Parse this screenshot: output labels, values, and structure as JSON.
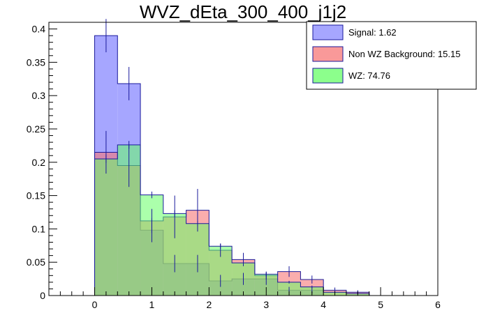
{
  "chart_data": {
    "type": "histogram",
    "title": "WVZ_dEta_300_400_j1j2",
    "xlabel": "",
    "ylabel": "",
    "xlim": [
      -0.8,
      6
    ],
    "ylim": [
      0,
      0.41
    ],
    "bin_edges": [
      0,
      0.4,
      0.8,
      1.2,
      1.6,
      2.0,
      2.4,
      2.8,
      3.2,
      3.6,
      4.0,
      4.4,
      4.8
    ],
    "x_ticks": [
      0,
      1,
      2,
      3,
      4,
      5,
      6
    ],
    "x_tick_labels": [
      "0",
      "1",
      "2",
      "3",
      "4",
      "5",
      "6"
    ],
    "y_ticks": [
      0,
      0.05,
      0.1,
      0.15,
      0.2,
      0.25,
      0.3,
      0.35,
      0.4
    ],
    "y_tick_labels": [
      "0",
      "0.05",
      "0.1",
      "0.15",
      "0.2",
      "0.25",
      "0.3",
      "0.35",
      "0.4"
    ],
    "series": [
      {
        "name": "Signal",
        "legend": "Signal: 1.62",
        "fill": "#a6a6ff",
        "opacity": 1.0,
        "values": [
          0.39,
          0.318,
          0.098,
          0.048,
          0.048,
          0.022,
          0.025,
          0.025,
          0.008,
          0.008,
          0.0,
          0.0
        ],
        "errors": [
          0.025,
          0.025,
          0.018,
          0.013,
          0.013,
          0.009,
          0.009,
          0.009,
          0.005,
          0.005,
          0,
          0
        ]
      },
      {
        "name": "Non WZ Background",
        "legend": "Non WZ Background: 15.15",
        "fill": "#f77777",
        "opacity": 0.6,
        "values": [
          0.215,
          0.195,
          0.112,
          0.118,
          0.128,
          0.068,
          0.054,
          0.03,
          0.036,
          0.024,
          0.008,
          0.005
        ],
        "errors": [
          0.032,
          0.032,
          0.018,
          0.032,
          0.032,
          0.01,
          0.01,
          0.006,
          0.008,
          0.006,
          0.004,
          0.003
        ]
      },
      {
        "name": "WZ",
        "legend": "WZ: 74.76",
        "fill": "#66ff66",
        "opacity": 0.55,
        "values": [
          0.205,
          0.226,
          0.151,
          0.123,
          0.108,
          0.074,
          0.049,
          0.032,
          0.02,
          0.013,
          0.005,
          0.003
        ],
        "errors": [
          0.006,
          0.006,
          0.005,
          0.005,
          0.004,
          0.004,
          0.003,
          0.003,
          0.002,
          0.002,
          0.001,
          0.001
        ]
      }
    ],
    "legend_position": "top-right"
  }
}
